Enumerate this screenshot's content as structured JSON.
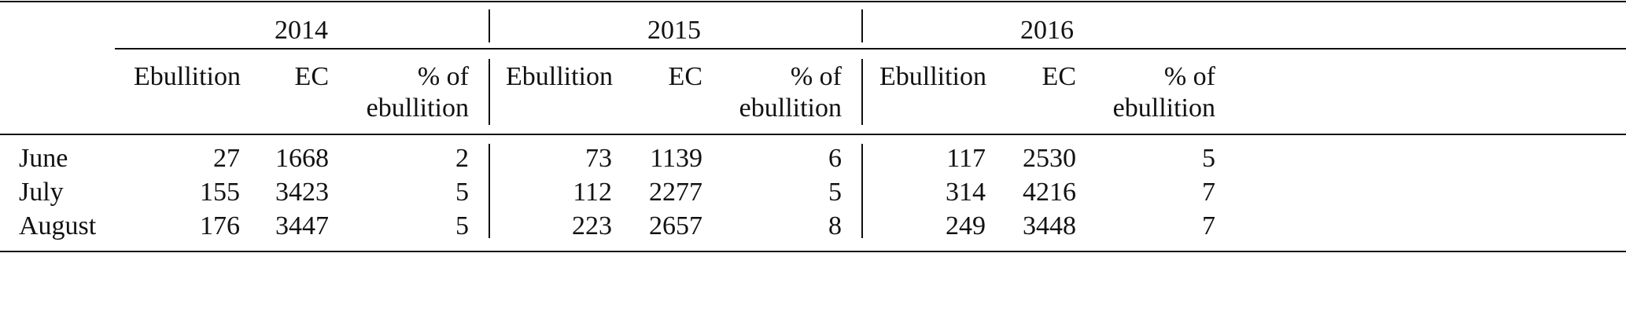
{
  "table": {
    "years": [
      "2014",
      "2015",
      "2016"
    ],
    "sub_headers": {
      "ebullition": "Ebullition",
      "ec": "EC",
      "pct_line1": "% of",
      "pct_line2": "ebullition"
    },
    "rows": [
      {
        "month": "June",
        "values": [
          [
            "27",
            "1668",
            "2"
          ],
          [
            "73",
            "1139",
            "6"
          ],
          [
            "117",
            "2530",
            "5"
          ]
        ]
      },
      {
        "month": "July",
        "values": [
          [
            "155",
            "3423",
            "5"
          ],
          [
            "112",
            "2277",
            "5"
          ],
          [
            "314",
            "4216",
            "7"
          ]
        ]
      },
      {
        "month": "August",
        "values": [
          [
            "176",
            "3447",
            "5"
          ],
          [
            "223",
            "2657",
            "8"
          ],
          [
            "249",
            "3448",
            "7"
          ]
        ]
      }
    ]
  }
}
